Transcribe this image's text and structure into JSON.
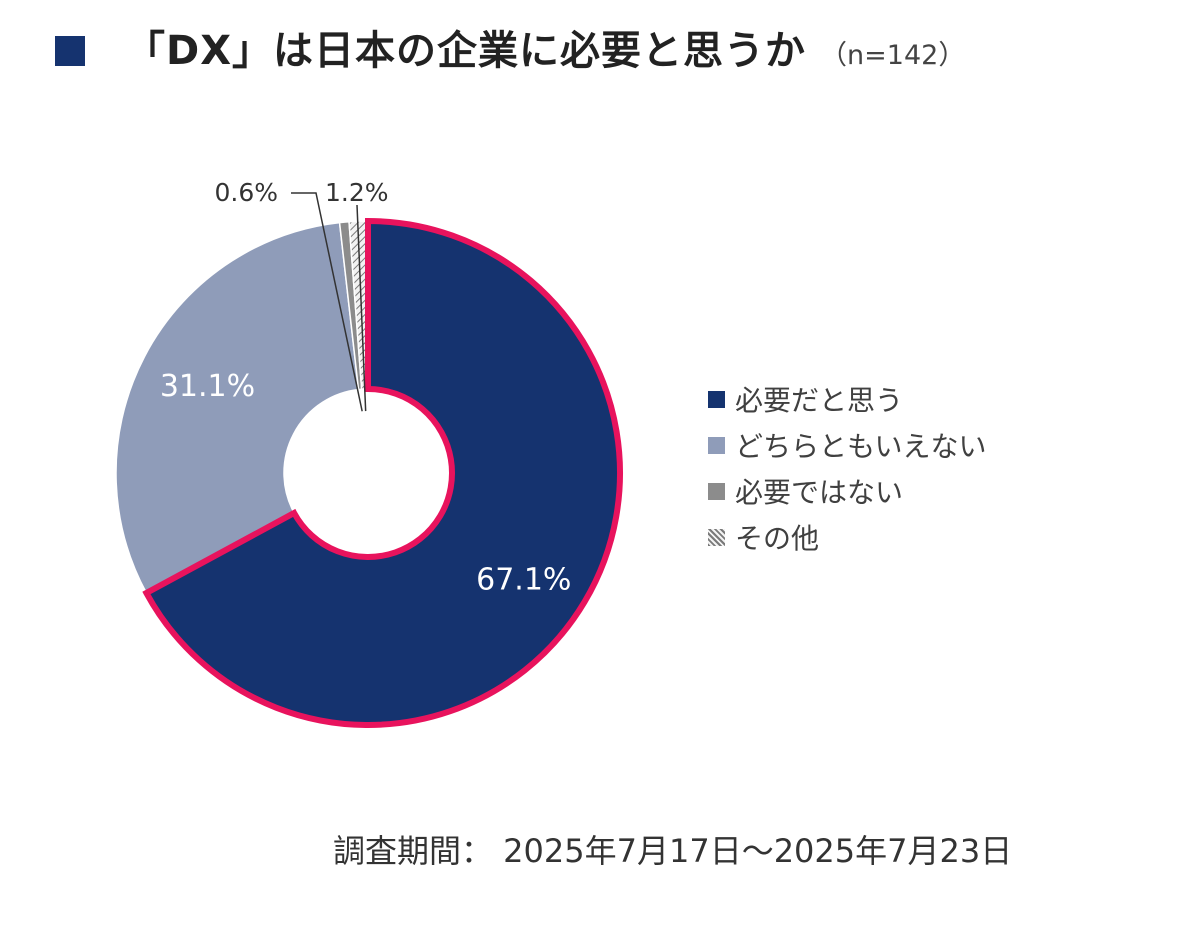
{
  "title": {
    "text": "「DX」は日本の企業に必要と思うか",
    "n_label": "（n=142）",
    "marker_color": "#15336f"
  },
  "chart_data": {
    "type": "pie",
    "variant": "donut",
    "categories": [
      "必要だと思う",
      "どちらともいえない",
      "必要ではない",
      "その他"
    ],
    "values": [
      67.1,
      31.1,
      0.6,
      1.2
    ],
    "data_labels": [
      "67.1%",
      "31.1%",
      "0.6%",
      "1.2%"
    ],
    "colors": [
      "#15336f",
      "#8f9cb9",
      "#8c8c8c",
      "pattern-hatch"
    ],
    "highlighted_category": "必要だと思う",
    "highlight_color": "#e8135d",
    "legend_position": "right"
  },
  "survey_period": "調査期間： 2025年7月17日～2025年7月23日"
}
